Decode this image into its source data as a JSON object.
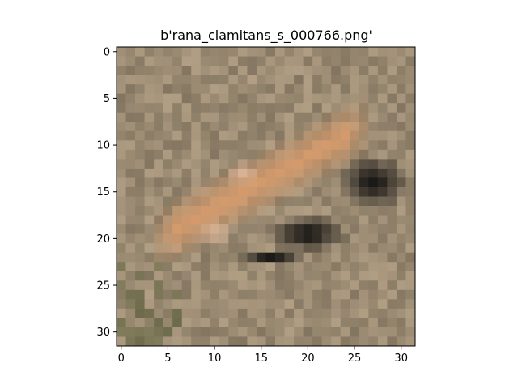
{
  "figure": {
    "title": "b'rana_clamitans_s_000766.png'"
  },
  "chart_data": {
    "type": "heatmap",
    "title": "b'rana_clamitans_s_000766.png'",
    "xlabel": "",
    "ylabel": "",
    "xlim": [
      -0.5,
      31.5
    ],
    "ylim": [
      31.5,
      -0.5
    ],
    "x_ticks": [
      0,
      5,
      10,
      15,
      20,
      25,
      30
    ],
    "y_ticks": [
      0,
      5,
      10,
      15,
      20,
      25,
      30
    ],
    "x_tick_labels": [
      "0",
      "5",
      "10",
      "15",
      "20",
      "25",
      "30"
    ],
    "y_tick_labels": [
      "0",
      "5",
      "10",
      "15",
      "20",
      "25",
      "30"
    ],
    "image_size": [
      32,
      32
    ],
    "grid": false,
    "colors": {
      "background_mean": "#9a8a72",
      "frog_body": "#d49a6c",
      "frog_highlight": "#e8bfa3",
      "shadow": "#1c1a17"
    }
  }
}
